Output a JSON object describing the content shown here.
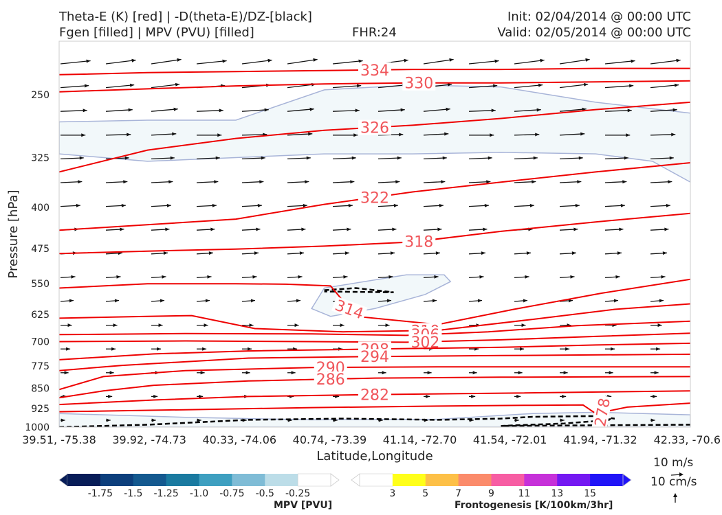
{
  "header": {
    "title_line1": "Theta-E (K) [red] | -D(theta-E)/DZ-[black]",
    "title_line2": "Fgen [filled] | MPV (PVU) [filled]",
    "fhr": "FHR:24",
    "init": "Init: 02/04/2014 @ 00:00 UTC",
    "valid": "Valid: 02/05/2014 @ 00:00 UTC"
  },
  "chart_data": {
    "type": "cross-section",
    "xlabel": "Latitude,Longitude",
    "ylabel": "Pressure [hPa]",
    "x_ticks": [
      "39.51, -75.38",
      "39.92, -74.73",
      "40.33, -74.06",
      "40.74, -73.39",
      "41.14, -72.70",
      "41.54, -72.01",
      "41.94, -71.32",
      "42.33, -70.6"
    ],
    "y_ticks": [
      250,
      325,
      400,
      475,
      550,
      625,
      700,
      775,
      850,
      925,
      1000
    ],
    "ylim": [
      1000,
      200
    ],
    "y_scale": "log",
    "theta_e_contours": [
      {
        "level": "334",
        "x": [
          0.0,
          0.14,
          0.28,
          0.42,
          0.56,
          0.7,
          0.85,
          1.0
        ],
        "p": [
          230,
          228,
          227,
          226,
          225,
          225,
          224,
          224
        ]
      },
      {
        "level": "330",
        "x": [
          0.0,
          0.14,
          0.28,
          0.42,
          0.56,
          0.7,
          0.85,
          1.0
        ],
        "p": [
          247,
          244,
          241,
          239,
          238,
          238,
          237,
          236
        ]
      },
      {
        "level": "326",
        "x": [
          0.0,
          0.14,
          0.28,
          0.42,
          0.56,
          0.7,
          0.85,
          1.0
        ],
        "p": [
          345,
          315,
          300,
          290,
          284,
          276,
          266,
          258
        ]
      },
      {
        "level": "322",
        "x": [
          0.0,
          0.14,
          0.28,
          0.42,
          0.56,
          0.7,
          0.85,
          1.0
        ],
        "p": [
          440,
          430,
          420,
          395,
          375,
          360,
          345,
          332
        ]
      },
      {
        "level": "318",
        "x": [
          0.0,
          0.14,
          0.28,
          0.42,
          0.56,
          0.7,
          0.85,
          1.0
        ],
        "p": [
          485,
          480,
          476,
          470,
          462,
          442,
          425,
          410
        ]
      },
      {
        "level": "314",
        "x": [
          0.0,
          0.14,
          0.28,
          0.36,
          0.43,
          0.47,
          0.6,
          0.72,
          0.86,
          1.0
        ],
        "p": [
          560,
          550,
          550,
          551,
          555,
          630,
          652,
          612,
          572,
          540
        ]
      },
      {
        "level": "310",
        "x": [
          0.0,
          0.14,
          0.21,
          0.31,
          0.45,
          0.6,
          0.75,
          0.88,
          1.0
        ],
        "p": [
          635,
          630,
          628,
          663,
          672,
          668,
          638,
          612,
          598
        ]
      },
      {
        "level": "306",
        "x": [
          0.0,
          0.2,
          0.4,
          0.55,
          0.68,
          0.82,
          1.0
        ],
        "p": [
          680,
          677,
          678,
          682,
          672,
          655,
          643
        ]
      },
      {
        "level": "302",
        "x": [
          0.0,
          0.2,
          0.4,
          0.55,
          0.7,
          0.85,
          1.0
        ],
        "p": [
          700,
          698,
          700,
          702,
          695,
          685,
          676
        ]
      },
      {
        "level": "298",
        "x": [
          0.0,
          0.15,
          0.3,
          0.5,
          0.7,
          0.85,
          1.0
        ],
        "p": [
          755,
          737,
          728,
          722,
          717,
          710,
          705
        ]
      },
      {
        "level": "294",
        "x": [
          0.0,
          0.1,
          0.3,
          0.5,
          0.7,
          1.0
        ],
        "p": [
          790,
          773,
          750,
          745,
          742,
          738
        ]
      },
      {
        "level": "290",
        "x": [
          0.0,
          0.07,
          0.2,
          0.4,
          0.6,
          0.8,
          1.0
        ],
        "p": [
          855,
          810,
          790,
          780,
          778,
          778,
          778
        ]
      },
      {
        "level": "286",
        "x": [
          0.0,
          0.07,
          0.15,
          0.3,
          0.5,
          0.7,
          1.0
        ],
        "p": [
          885,
          860,
          840,
          825,
          815,
          812,
          810
        ]
      },
      {
        "level": "282",
        "x": [
          0.0,
          0.15,
          0.3,
          0.5,
          0.7,
          1.0
        ],
        "p": [
          910,
          893,
          880,
          873,
          868,
          860
        ]
      },
      {
        "level": "278",
        "x": [
          0.0,
          0.2,
          0.4,
          0.6,
          0.75,
          0.83,
          0.85,
          0.9,
          1.0
        ],
        "p": [
          938,
          930,
          922,
          916,
          913,
          912,
          945,
          920,
          905
        ]
      }
    ],
    "stability_contours": [
      {
        "x": [
          0.42,
          0.47,
          0.5,
          0.53,
          0.42
        ],
        "p": [
          565,
          560,
          565,
          570,
          568
        ]
      },
      {
        "x": [
          0.0,
          0.14,
          0.3,
          0.45,
          0.6,
          0.7,
          0.75,
          0.85,
          0.88,
          0.85,
          0.8,
          0.7,
          1.0
        ],
        "p": [
          1000,
          990,
          970,
          965,
          970,
          965,
          958,
          955,
          965,
          975,
          985,
          995,
          990
        ]
      }
    ],
    "mpv_regions": [
      {
        "name": "upper",
        "x": [
          0.0,
          0.14,
          0.28,
          0.42,
          0.56,
          0.7,
          0.85,
          1.0,
          1.0,
          0.94,
          0.85,
          0.7,
          0.56,
          0.42,
          0.28,
          0.14,
          0.0
        ],
        "p": [
          280,
          278,
          278,
          245,
          240,
          242,
          258,
          270,
          360,
          330,
          320,
          318,
          320,
          320,
          325,
          330,
          320
        ]
      },
      {
        "name": "mid",
        "x": [
          0.42,
          0.55,
          0.61,
          0.62,
          0.58,
          0.5,
          0.43,
          0.4
        ],
        "p": [
          560,
          530,
          530,
          545,
          575,
          610,
          630,
          610
        ]
      },
      {
        "name": "lower",
        "x": [
          0.0,
          0.2,
          0.4,
          0.6,
          0.75,
          0.85,
          1.0,
          1.0,
          0.0
        ],
        "p": [
          945,
          960,
          970,
          968,
          945,
          940,
          950,
          1000,
          1000
        ]
      }
    ],
    "colorbars": [
      {
        "label": "MPV [PVU]",
        "ticks": [
          "-1.75",
          "-1.5",
          "-1.25",
          "-1.0",
          "-0.75",
          "-0.5",
          "-0.25"
        ],
        "colors": [
          "#081d58",
          "#0d3f7c",
          "#14598f",
          "#1a7aa0",
          "#3e9fc0",
          "#7fbcd6",
          "#bcdde8",
          "#ffffff"
        ]
      },
      {
        "label": "Frontogenesis [K/100km/3hr]",
        "ticks": [
          "3",
          "5",
          "7",
          "9",
          "11",
          "13",
          "15"
        ],
        "colors": [
          "#ffffff",
          "#ffff1a",
          "#fdc047",
          "#fb8b6b",
          "#f75da3",
          "#c631d9",
          "#7418f2",
          "#2014f7"
        ]
      }
    ],
    "wind_scale": {
      "u_label": "10 m/s",
      "w_label": "10 cm/s"
    }
  }
}
